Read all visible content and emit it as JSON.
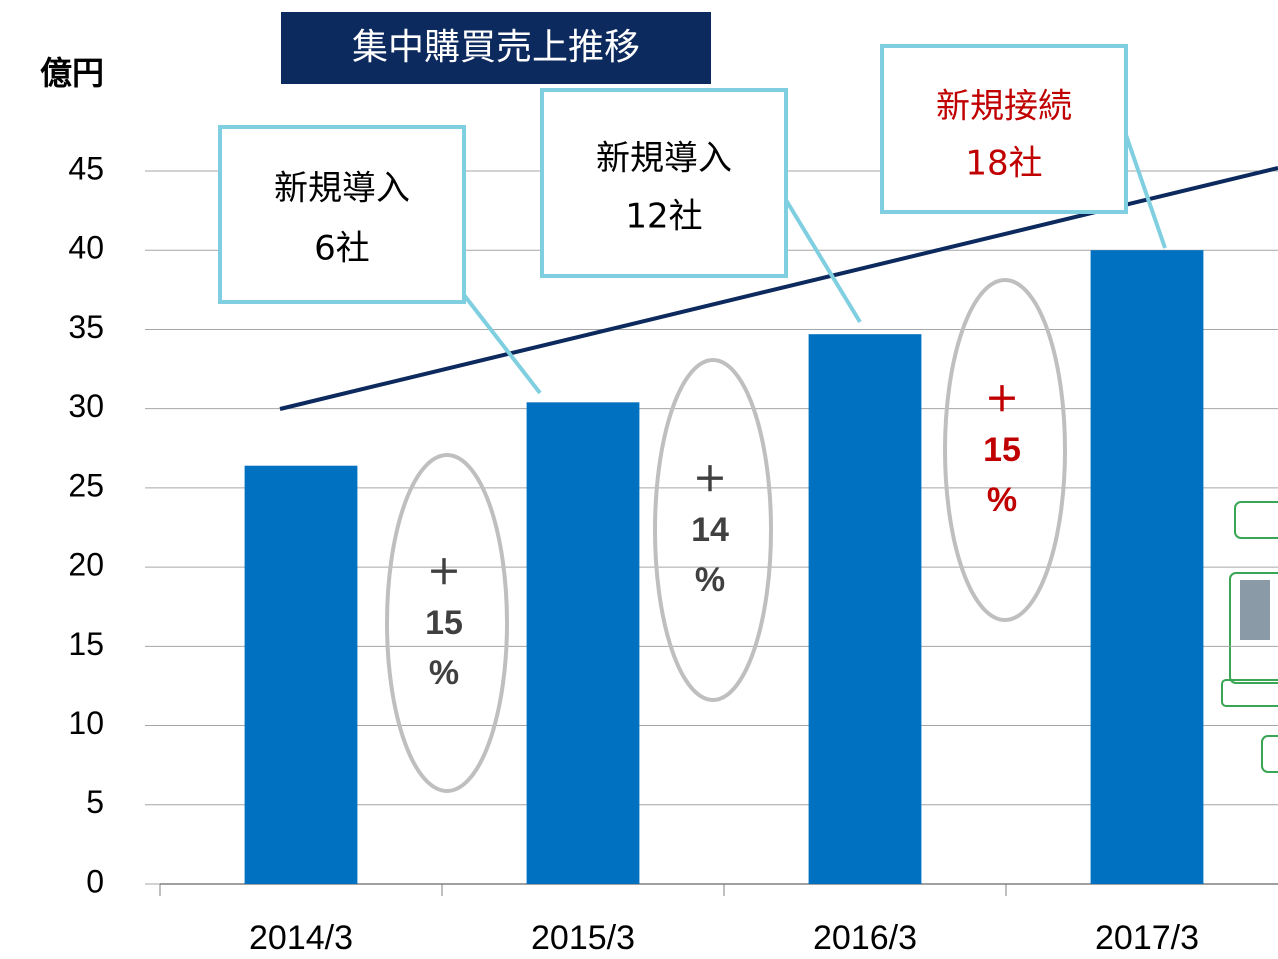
{
  "chart_data": {
    "type": "bar",
    "title": "集中購買売上推移",
    "y_label": "億円",
    "categories": [
      "2014/3",
      "2015/3",
      "2016/3",
      "2017/3"
    ],
    "values": [
      26.4,
      30.4,
      34.7,
      40.0
    ],
    "color": "#0070c0",
    "ylim": [
      0,
      45
    ],
    "yticks": [
      0,
      5,
      10,
      15,
      20,
      25,
      30,
      35,
      40,
      45
    ],
    "grid": true,
    "callouts": [
      {
        "lines": [
          "新規導入",
          "6社"
        ],
        "color": "#000000"
      },
      {
        "lines": [
          "新規導入",
          "12社"
        ],
        "color": "#000000"
      },
      {
        "lines": [
          "新規接続",
          "18社"
        ],
        "color": "#c00000"
      }
    ],
    "growth_labels": [
      {
        "lines": [
          "＋",
          "15",
          "%"
        ],
        "color": "#404040"
      },
      {
        "lines": [
          "＋",
          "14",
          "%"
        ],
        "color": "#404040"
      },
      {
        "lines": [
          "＋",
          "15",
          "%"
        ],
        "color": "#c00000"
      }
    ]
  }
}
